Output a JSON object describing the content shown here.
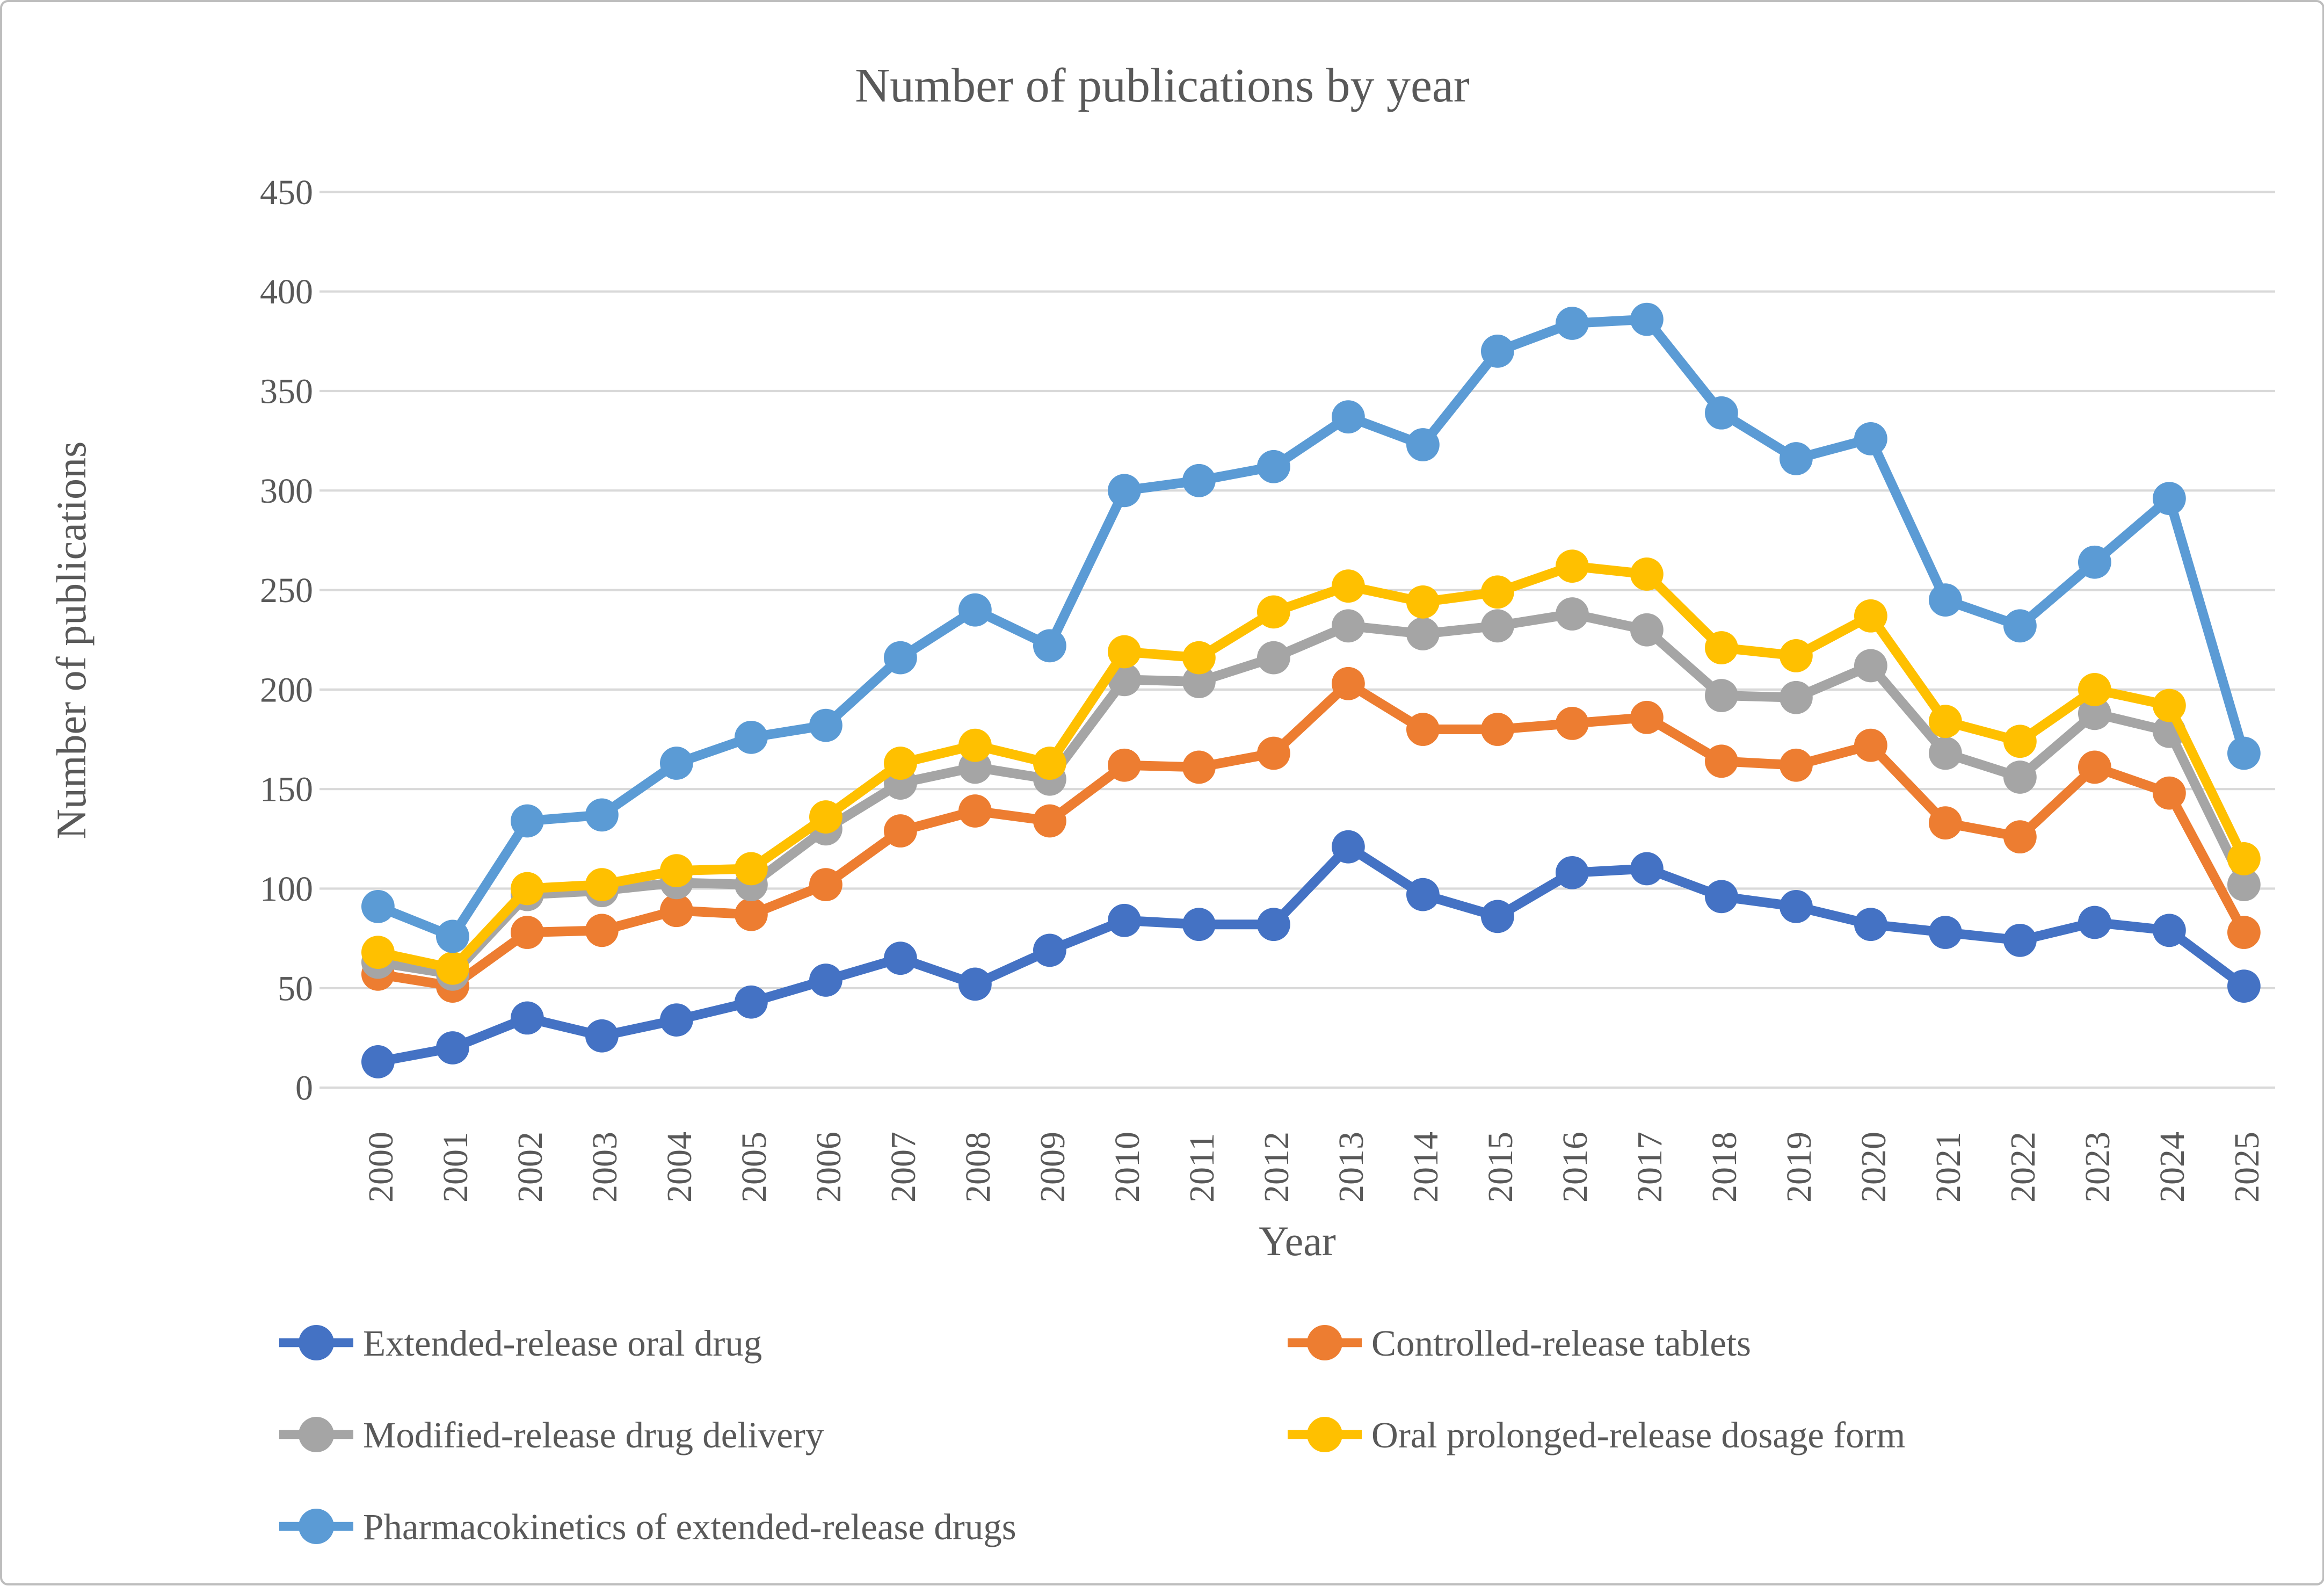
{
  "figure": {
    "title": "Number of publications by year",
    "x_axis_title": "Year",
    "y_axis_title": "Number of publications"
  },
  "colors": {
    "text": "#595959",
    "gridline": "#d9d9d9",
    "background": "#ffffff",
    "border": "#bdbdbd"
  },
  "chart_data": {
    "type": "line",
    "title": "Number of publications by year",
    "xlabel": "Year",
    "ylabel": "Number of publications",
    "ylim": [
      0,
      450
    ],
    "y_ticks": [
      0,
      50,
      100,
      150,
      200,
      250,
      300,
      350,
      400,
      450
    ],
    "grid": "horizontal",
    "legend_position": "bottom",
    "x": [
      2000,
      2001,
      2002,
      2003,
      2004,
      2005,
      2006,
      2007,
      2008,
      2009,
      2010,
      2011,
      2012,
      2013,
      2014,
      2015,
      2016,
      2017,
      2018,
      2019,
      2020,
      2021,
      2022,
      2023,
      2024,
      2025
    ],
    "series": [
      {
        "name": "Extended-release oral drug",
        "color": "#4472c4",
        "values": [
          13,
          20,
          35,
          26,
          34,
          43,
          54,
          65,
          52,
          69,
          84,
          82,
          82,
          121,
          97,
          86,
          108,
          110,
          96,
          91,
          82,
          78,
          74,
          83,
          79,
          51
        ]
      },
      {
        "name": "Controlled-release tablets",
        "color": "#ed7d31",
        "values": [
          57,
          51,
          78,
          79,
          89,
          87,
          102,
          129,
          139,
          134,
          162,
          161,
          168,
          203,
          180,
          180,
          183,
          186,
          164,
          162,
          172,
          133,
          126,
          161,
          148,
          78
        ]
      },
      {
        "name": "Modified-release drug delivery",
        "color": "#a5a5a5",
        "values": [
          63,
          57,
          97,
          99,
          103,
          102,
          130,
          153,
          161,
          155,
          205,
          204,
          216,
          232,
          228,
          232,
          238,
          230,
          197,
          196,
          212,
          168,
          156,
          188,
          179,
          102
        ]
      },
      {
        "name": "Oral prolonged-release dosage form",
        "color": "#ffc000",
        "values": [
          68,
          60,
          100,
          102,
          109,
          110,
          136,
          163,
          172,
          163,
          219,
          216,
          239,
          252,
          244,
          249,
          262,
          258,
          221,
          217,
          237,
          184,
          174,
          200,
          192,
          115
        ]
      },
      {
        "name": "Pharmacokinetics of extended-release drugs",
        "color": "#5b9bd5",
        "values": [
          91,
          76,
          134,
          137,
          163,
          176,
          182,
          216,
          240,
          222,
          300,
          305,
          312,
          337,
          323,
          370,
          384,
          386,
          339,
          316,
          326,
          245,
          232,
          264,
          296,
          168
        ]
      }
    ]
  }
}
